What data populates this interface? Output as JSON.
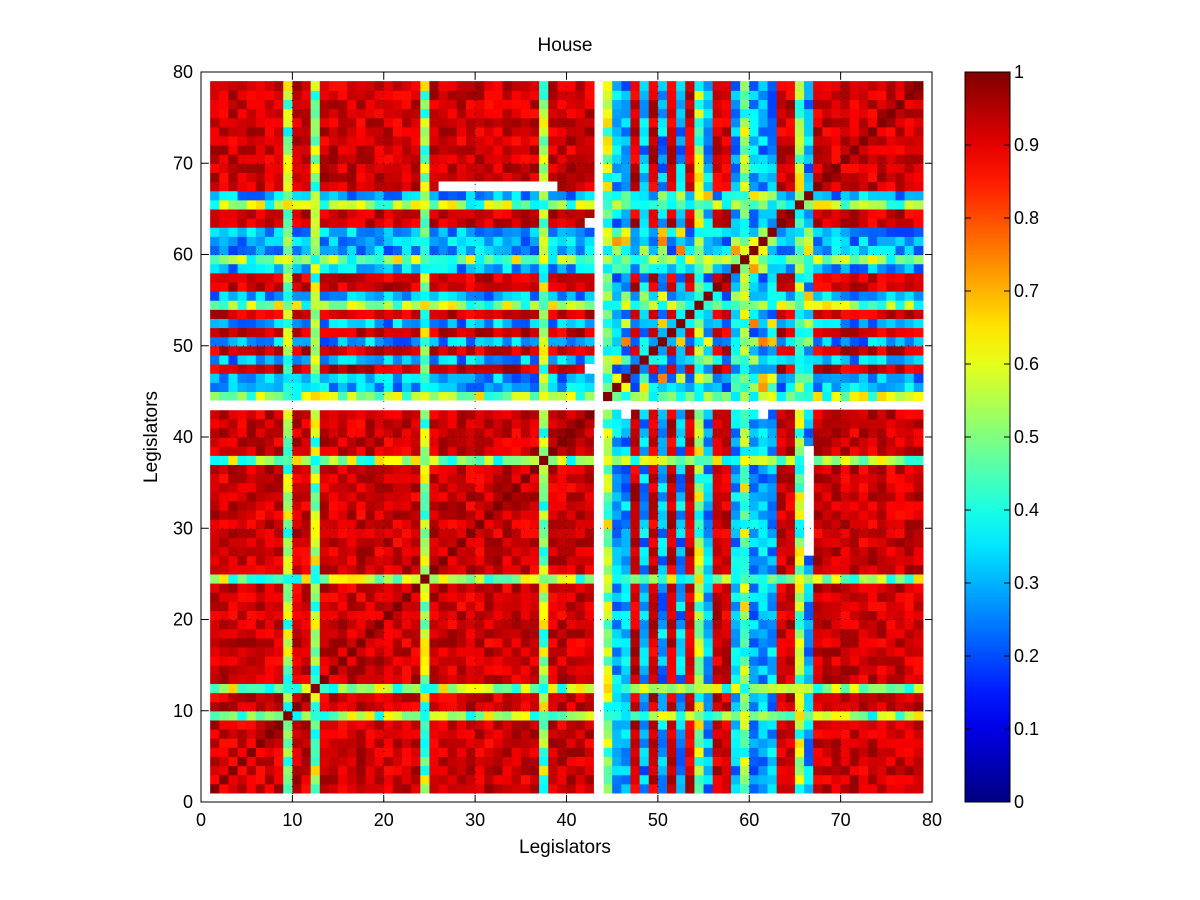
{
  "chart_data": {
    "type": "heatmap",
    "title": "House",
    "xlabel": "Legislators",
    "ylabel": "Legislators",
    "xlim": [
      0,
      80
    ],
    "ylim": [
      0,
      80
    ],
    "xticks": [
      0,
      10,
      20,
      30,
      40,
      50,
      60,
      70,
      80
    ],
    "yticks": [
      0,
      10,
      20,
      30,
      40,
      50,
      60,
      70,
      80
    ],
    "grid": "dotted",
    "n_legislators": 78,
    "colormap": "jet",
    "colorbar": {
      "range": [
        0,
        1
      ],
      "ticks": [
        0,
        0.1,
        0.2,
        0.3,
        0.4,
        0.5,
        0.6,
        0.7,
        0.8,
        0.9,
        1
      ],
      "tick_labels": [
        "0",
        "0.1",
        "0.2",
        "0.3",
        "0.4",
        "0.5",
        "0.6",
        "0.7",
        "0.8",
        "0.9",
        "1"
      ]
    },
    "group_a_members": [
      1,
      2,
      3,
      4,
      5,
      6,
      7,
      8,
      10,
      11,
      13,
      14,
      15,
      16,
      17,
      18,
      19,
      20,
      21,
      22,
      23,
      25,
      26,
      27,
      28,
      29,
      30,
      31,
      32,
      33,
      34,
      35,
      36,
      38,
      39,
      40,
      41,
      42,
      47,
      49,
      51,
      53,
      56,
      57,
      63,
      64,
      67,
      68,
      69,
      70,
      71,
      72,
      73,
      74,
      75,
      76,
      77,
      78
    ],
    "partial_members": [
      9,
      12,
      24,
      37,
      44,
      54,
      59,
      65
    ],
    "anomalous_member": 43,
    "missing_rows": [
      43
    ],
    "missing_row_segments": [
      {
        "row": 43,
        "from": 1,
        "to": 42
      },
      {
        "row": 47,
        "from": 42,
        "to": 43
      },
      {
        "row": 63,
        "from": 42,
        "to": 43
      },
      {
        "row": 67,
        "from": 26,
        "to": 29
      },
      {
        "row": 67,
        "from": 30,
        "to": 38
      }
    ],
    "missing_col_segments": [
      {
        "col": 43,
        "from": 1,
        "to": 40
      },
      {
        "col": 66,
        "from": 27,
        "to": 38
      },
      {
        "col": 46,
        "from": 42,
        "to": 43
      },
      {
        "col": 61,
        "from": 42,
        "to": 43
      }
    ],
    "values_description": "78x78 symmetric agreement matrix; diagonal = 1"
  }
}
